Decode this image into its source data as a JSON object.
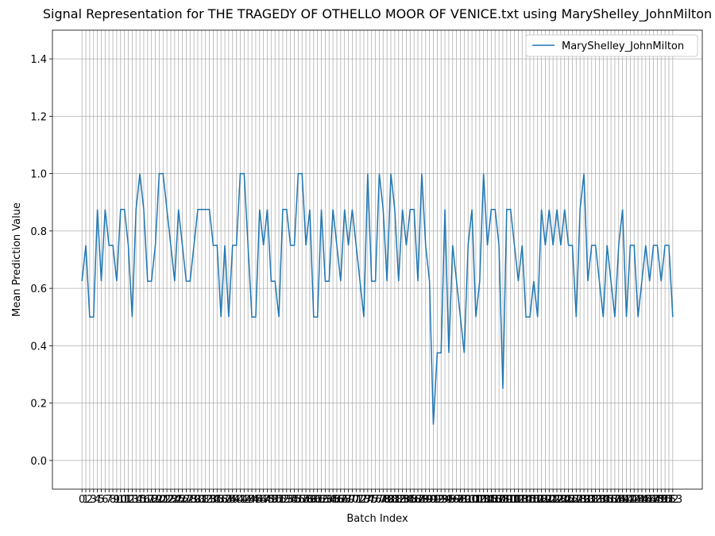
{
  "chart_data": {
    "type": "line",
    "title": "Signal Representation for THE TRAGEDY OF OTHELLO MOOR OF VENICE.txt using MaryShelley_JohnMilton",
    "xlabel": "Batch Index",
    "ylabel": "Mean Prediction Value",
    "x": [
      0,
      1,
      2,
      3,
      4,
      5,
      6,
      7,
      8,
      9,
      10,
      11,
      12,
      13,
      14,
      15,
      16,
      17,
      18,
      19,
      20,
      21,
      22,
      23,
      24,
      25,
      26,
      27,
      28,
      29,
      30,
      31,
      32,
      33,
      34,
      35,
      36,
      37,
      38,
      39,
      40,
      41,
      42,
      43,
      44,
      45,
      46,
      47,
      48,
      49,
      50,
      51,
      52,
      53,
      54,
      55,
      56,
      57,
      58,
      59,
      60,
      61,
      62,
      63,
      64,
      65,
      66,
      67,
      68,
      69,
      70,
      71,
      72,
      73,
      74,
      75,
      76,
      77,
      78,
      79,
      80,
      81,
      82,
      83,
      84,
      85,
      86,
      87,
      88,
      89,
      90,
      91,
      92,
      93,
      94,
      95,
      96,
      97,
      98,
      99,
      100,
      101,
      102,
      103,
      104,
      105,
      106,
      107,
      108,
      109,
      110,
      111,
      112,
      113,
      114,
      115,
      116,
      117,
      118,
      119,
      120,
      121,
      122,
      123,
      124,
      125,
      126,
      127,
      128,
      129,
      130,
      131,
      132,
      133,
      134,
      135,
      136,
      137,
      138,
      139,
      140,
      141,
      142,
      143,
      144,
      145,
      146,
      147,
      148,
      149,
      150,
      151,
      152,
      153
    ],
    "series": [
      {
        "name": "MaryShelley_JohnMilton",
        "color": "#1f77b4",
        "values": [
          0.625,
          0.75,
          0.5,
          0.5,
          0.875,
          0.625,
          0.875,
          0.75,
          0.75,
          0.625,
          0.875,
          0.875,
          0.75,
          0.5,
          0.875,
          1.0,
          0.875,
          0.625,
          0.625,
          0.75,
          1.0,
          1.0,
          0.875,
          0.75,
          0.625,
          0.875,
          0.75,
          0.625,
          0.625,
          0.75,
          0.875,
          0.875,
          0.875,
          0.875,
          0.75,
          0.75,
          0.5,
          0.75,
          0.5,
          0.75,
          0.75,
          1.0,
          1.0,
          0.75,
          0.5,
          0.5,
          0.875,
          0.75,
          0.875,
          0.625,
          0.625,
          0.5,
          0.875,
          0.875,
          0.75,
          0.75,
          1.0,
          1.0,
          0.75,
          0.875,
          0.5,
          0.5,
          0.875,
          0.625,
          0.625,
          0.875,
          0.75,
          0.625,
          0.875,
          0.75,
          0.875,
          0.75,
          0.625,
          0.5,
          1.0,
          0.625,
          0.625,
          1.0,
          0.875,
          0.625,
          1.0,
          0.875,
          0.625,
          0.875,
          0.75,
          0.875,
          0.875,
          0.625,
          1.0,
          0.75,
          0.625,
          0.125,
          0.375,
          0.375,
          0.875,
          0.375,
          0.75,
          0.625,
          0.5,
          0.375,
          0.75,
          0.875,
          0.5,
          0.625,
          1.0,
          0.75,
          0.875,
          0.875,
          0.75,
          0.25,
          0.875,
          0.875,
          0.75,
          0.625,
          0.75,
          0.5,
          0.5,
          0.625,
          0.5,
          0.875,
          0.75,
          0.875,
          0.75,
          0.875,
          0.75,
          0.875,
          0.75,
          0.75,
          0.5,
          0.875,
          1.0,
          0.625,
          0.75,
          0.75,
          0.625,
          0.5,
          0.75,
          0.625,
          0.5,
          0.75,
          0.875,
          0.5,
          0.75,
          0.75,
          0.5,
          0.625,
          0.75,
          0.625,
          0.75,
          0.75,
          0.625,
          0.75,
          0.75,
          0.5
        ]
      }
    ],
    "xlim": [
      -7.65,
      160.65
    ],
    "ylim": [
      -0.1,
      1.5
    ],
    "xticks": [
      0,
      1,
      2,
      3,
      4,
      5,
      6,
      7,
      8,
      9,
      10,
      11,
      12,
      13,
      14,
      15,
      16,
      17,
      18,
      19,
      20,
      21,
      22,
      23,
      24,
      25,
      26,
      27,
      28,
      29,
      30,
      31,
      32,
      33,
      34,
      35,
      36,
      37,
      38,
      39,
      40,
      41,
      42,
      43,
      44,
      45,
      46,
      47,
      48,
      49,
      50,
      51,
      52,
      53,
      54,
      55,
      56,
      57,
      58,
      59,
      60,
      61,
      62,
      63,
      64,
      65,
      66,
      67,
      68,
      69,
      70,
      71,
      72,
      73,
      74,
      75,
      76,
      77,
      78,
      79,
      80,
      81,
      82,
      83,
      84,
      85,
      86,
      87,
      88,
      89,
      90,
      91,
      92,
      93,
      94,
      95,
      96,
      97,
      98,
      99,
      100,
      101,
      102,
      103,
      104,
      105,
      106,
      107,
      108,
      109,
      110,
      111,
      112,
      113,
      114,
      115,
      116,
      117,
      118,
      119,
      120,
      121,
      122,
      123,
      124,
      125,
      126,
      127,
      128,
      129,
      130,
      131,
      132,
      133,
      134,
      135,
      136,
      137,
      138,
      139,
      140,
      141,
      142,
      143,
      144,
      145,
      146,
      147,
      148,
      149,
      150,
      151,
      152,
      153
    ],
    "yticks": [
      {
        "value": 0,
        "label": "0.0"
      },
      0.2,
      0.4,
      0.6,
      0.8,
      {
        "value": 1,
        "label": "1.0"
      },
      1.2,
      1.4
    ],
    "grid": true,
    "legend": "upper right"
  }
}
